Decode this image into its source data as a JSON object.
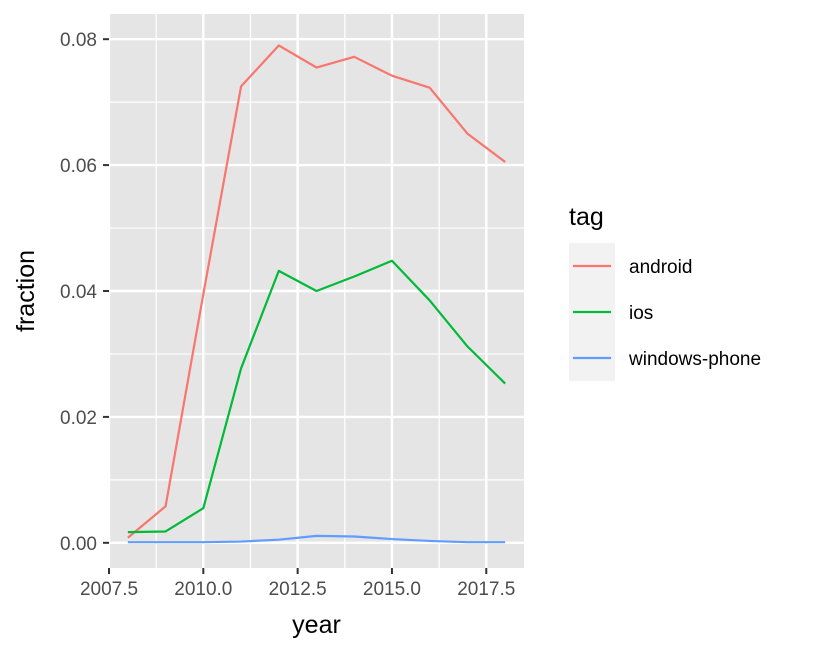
{
  "chart_data": {
    "type": "line",
    "title": "",
    "xlabel": "year",
    "ylabel": "fraction",
    "xlim": [
      2008,
      2018
    ],
    "ylim": [
      0,
      0.08
    ],
    "x_ticks": [
      2007.5,
      2010.0,
      2012.5,
      2015.0,
      2017.5
    ],
    "x_tick_labels": [
      "2007.5",
      "2010.0",
      "2012.5",
      "2015.0",
      "2017.5"
    ],
    "y_ticks": [
      0,
      0.02,
      0.04,
      0.06,
      0.08
    ],
    "y_tick_labels": [
      "0.00",
      "0.02",
      "0.04",
      "0.06",
      "0.08"
    ],
    "grid": true,
    "panel_background": "#e5e5e5",
    "legend": {
      "title": "tag",
      "position": "right"
    },
    "x": [
      2008,
      2009,
      2010,
      2011,
      2012,
      2013,
      2014,
      2015,
      2016,
      2017,
      2018
    ],
    "series": [
      {
        "name": "android",
        "color": "#F8766D",
        "values": [
          0.0008,
          0.0058,
          0.0395,
          0.0725,
          0.079,
          0.0755,
          0.0772,
          0.0742,
          0.0723,
          0.065,
          0.0605
        ]
      },
      {
        "name": "ios",
        "color": "#00BA38",
        "values": [
          0.0017,
          0.0018,
          0.0055,
          0.0277,
          0.0432,
          0.04,
          0.0423,
          0.0448,
          0.0385,
          0.0312,
          0.0253
        ]
      },
      {
        "name": "windows-phone",
        "color": "#619CFF",
        "values": [
          0.0001,
          0.0001,
          0.0001,
          0.0002,
          0.0005,
          0.0011,
          0.001,
          0.0006,
          0.0003,
          0.0001,
          0.0001
        ]
      }
    ]
  }
}
